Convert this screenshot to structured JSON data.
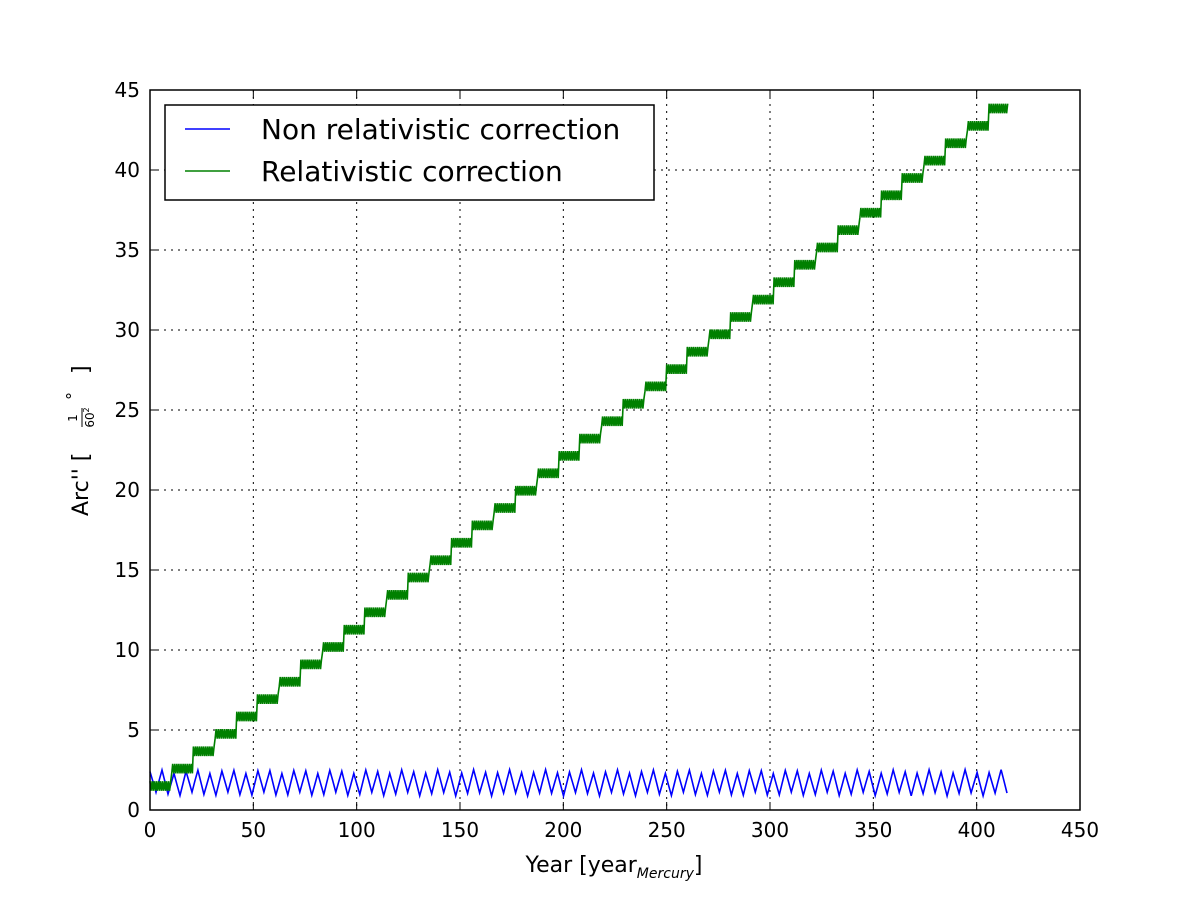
{
  "chart_data": {
    "type": "line",
    "title": "",
    "xlabel": "Year [year",
    "xlabel_sub": "Mercury",
    "xlabel_end": "]",
    "ylabel": "Arc'' [",
    "ylabel_frac_num": "1",
    "ylabel_frac_den": "60",
    "ylabel_frac_den_exp": "2",
    "ylabel_degree": "°",
    "ylabel_end": "]",
    "xlim": [
      0,
      450
    ],
    "ylim": [
      0,
      45
    ],
    "xticks": [
      0,
      50,
      100,
      150,
      200,
      250,
      300,
      350,
      400,
      450
    ],
    "yticks": [
      0,
      5,
      10,
      15,
      20,
      25,
      30,
      35,
      40,
      45
    ],
    "grid": true,
    "legend_position": "top-left",
    "series": [
      {
        "name": "Non relativistic correction",
        "color": "#0000ff",
        "style": "oscillating",
        "x_start": 0,
        "x_end": 415,
        "period": 5.8,
        "min": 1.0,
        "max": 2.4,
        "offset": 0.0
      },
      {
        "name": "Relativistic correction",
        "color": "#008000",
        "style": "staircase-oscillating",
        "x_start": 0,
        "x_end": 415,
        "oscillation_period": 1.0,
        "oscillation_amplitude": 0.6,
        "step_period": 10.4,
        "slope_per_year": 0.1044,
        "y_start": 1.5
      }
    ]
  }
}
